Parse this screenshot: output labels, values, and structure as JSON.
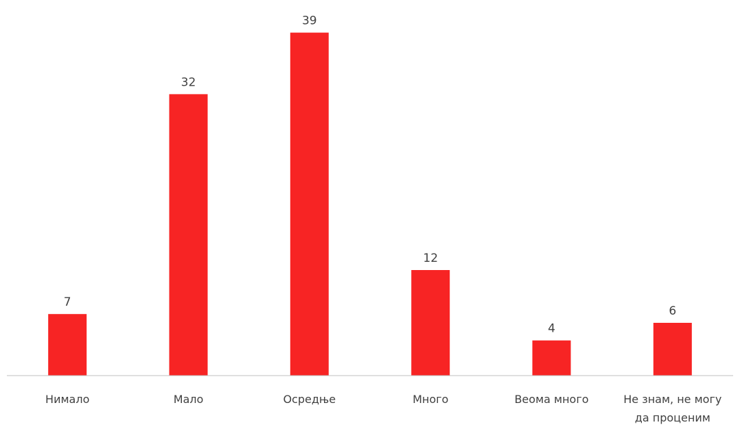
{
  "chart_data": {
    "type": "bar",
    "title": "",
    "xlabel": "",
    "ylabel": "",
    "categories": [
      "Нимало",
      "Мало",
      "Осредње",
      "Много",
      "Веома много",
      "Не знам, не могу да проценим"
    ],
    "category_label_lines": [
      [
        "Нимало"
      ],
      [
        "Мало"
      ],
      [
        "Осредње"
      ],
      [
        "Много"
      ],
      [
        "Веома много"
      ],
      [
        "Не знам, не могу",
        "да проценим"
      ]
    ],
    "values": [
      7,
      32,
      39,
      12,
      4,
      6
    ],
    "ylim": [
      0,
      40
    ],
    "grid": false,
    "legend": "none",
    "data_labels": true,
    "bar_color": "#f72424",
    "axis_color": "#bfbfbf",
    "text_color": "#404040"
  }
}
